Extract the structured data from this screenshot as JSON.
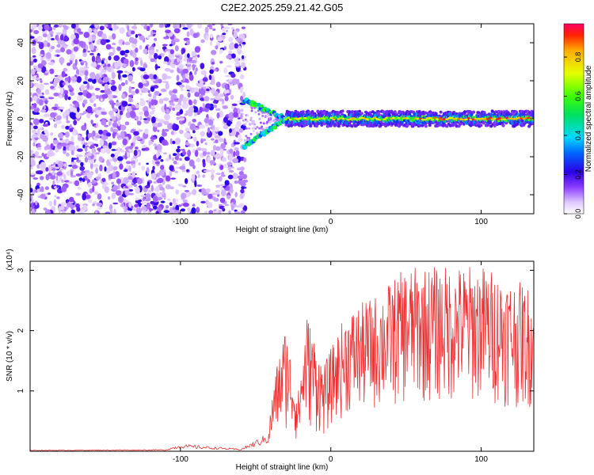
{
  "title": "C2E2.2025.259.21.42.G05",
  "chart_data": [
    {
      "type": "heatmap",
      "name": "spectrogram",
      "xlabel": "Height of straight line (km)",
      "ylabel": "Frequency (Hz)",
      "xlim": [
        -200,
        135
      ],
      "ylim": [
        -50,
        50
      ],
      "xticks": [
        -100,
        0,
        100
      ],
      "yticks": [
        -40,
        -20,
        0,
        20,
        40
      ],
      "colorbar": {
        "label": "Normalized spectral amplitude",
        "range": [
          0,
          0.97
        ],
        "ticks": [
          0.0,
          0.2,
          0.4,
          0.6,
          0.8
        ]
      },
      "features": {
        "noise_region_x": [
          -200,
          -57
        ],
        "split_branches": {
          "x_start": -58,
          "x_merge": -30,
          "freq_upper": 10,
          "freq_lower": -15
        },
        "central_line": {
          "x_range": [
            -30,
            135
          ],
          "freq": 0,
          "peak_amplitude": 0.95
        }
      }
    },
    {
      "type": "line",
      "name": "snr",
      "xlabel": "Height of straight line (km)",
      "ylabel": "SNR (10 * v/v)",
      "y_multiplier": "(x10⁴)",
      "xlim": [
        -200,
        135
      ],
      "ylim": [
        0,
        3.15
      ],
      "xticks": [
        -100,
        0,
        100
      ],
      "yticks": [
        1,
        2,
        3
      ],
      "series_color": "#ee3030",
      "envelope": [
        {
          "x": -200,
          "y": 0.02
        },
        {
          "x": -110,
          "y": 0.03
        },
        {
          "x": -100,
          "y": 0.12
        },
        {
          "x": -60,
          "y": 0.04
        },
        {
          "x": -42,
          "y": 0.3
        },
        {
          "x": -37,
          "y": 1.3
        },
        {
          "x": -30,
          "y": 2.1
        },
        {
          "x": -22,
          "y": 0.9
        },
        {
          "x": -16,
          "y": 2.3
        },
        {
          "x": -5,
          "y": 1.4
        },
        {
          "x": 10,
          "y": 2.3
        },
        {
          "x": 30,
          "y": 2.6
        },
        {
          "x": 50,
          "y": 3.05
        },
        {
          "x": 100,
          "y": 3.1
        },
        {
          "x": 135,
          "y": 2.7
        }
      ]
    }
  ]
}
